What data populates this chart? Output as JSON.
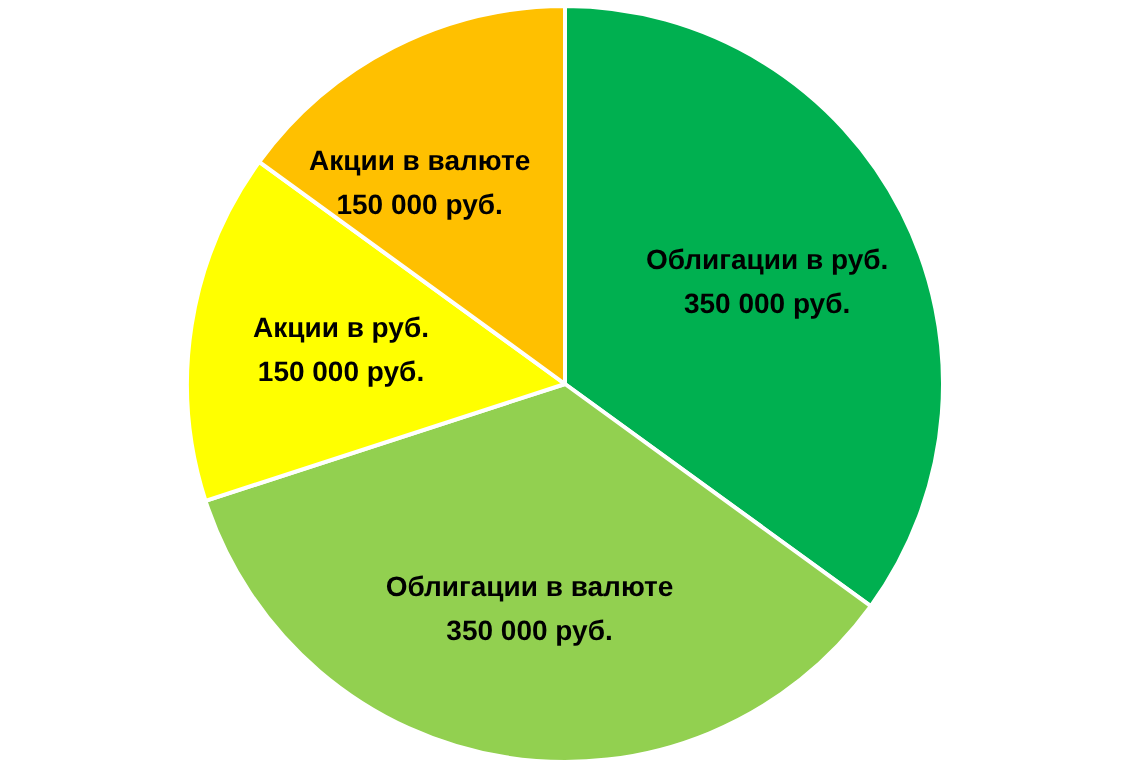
{
  "chart_data": {
    "type": "pie",
    "categories": [
      "Облигации в руб.",
      "Облигации в валюте",
      "Акции в руб.",
      "Акции в валюте"
    ],
    "values": [
      350000,
      350000,
      150000,
      150000
    ],
    "colors": [
      "#00b050",
      "#92d050",
      "#ffff00",
      "#ffc000"
    ],
    "value_labels": [
      "350 000 руб.",
      "350 000 руб.",
      "150 000 руб.",
      "150 000 руб."
    ]
  }
}
